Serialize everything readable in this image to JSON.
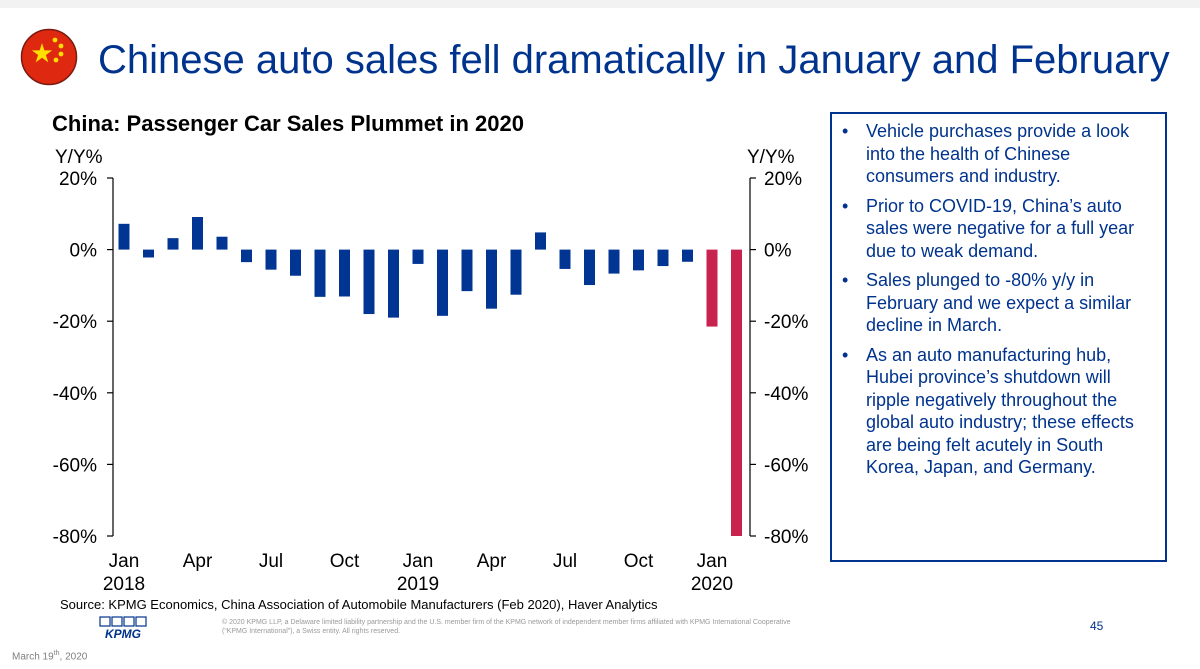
{
  "slide_title": "Chinese auto sales fell dramatically in January and February",
  "flag_icon": "china-flag-icon",
  "colors": {
    "primary": "#00338D",
    "highlight": "#C8224E",
    "bar": "#003594"
  },
  "chart_data": {
    "type": "bar",
    "title": "China: Passenger Car Sales Plummet in 2020",
    "ylabel_left": "Y/Y%",
    "ylabel_right": "Y/Y%",
    "ylim": [
      -80,
      20
    ],
    "yticks": [
      20,
      0,
      -20,
      -40,
      -60,
      -80
    ],
    "ytick_labels": [
      "20%",
      "0%",
      "-20%",
      "-40%",
      "-60%",
      "-80%"
    ],
    "categories": [
      "Jan 2018",
      "Feb 2018",
      "Mar 2018",
      "Apr 2018",
      "May 2018",
      "Jun 2018",
      "Jul 2018",
      "Aug 2018",
      "Sep 2018",
      "Oct 2018",
      "Nov 2018",
      "Dec 2018",
      "Jan 2019",
      "Feb 2019",
      "Mar 2019",
      "Apr 2019",
      "May 2019",
      "Jun 2019",
      "Jul 2019",
      "Aug 2019",
      "Sep 2019",
      "Oct 2019",
      "Nov 2019",
      "Dec 2019",
      "Jan 2020",
      "Feb 2020"
    ],
    "values": [
      7.2,
      -2.2,
      3.2,
      9.1,
      3.6,
      -3.5,
      -5.6,
      -7.3,
      -13.2,
      -13.1,
      -18.0,
      -19.0,
      -4.0,
      -18.5,
      -11.6,
      -16.5,
      -12.6,
      4.8,
      -5.4,
      -9.9,
      -6.7,
      -5.8,
      -4.6,
      -3.4,
      -21.5,
      -80.0
    ],
    "highlight_from_index": 24,
    "xtick_labels": [
      {
        "index": 0,
        "label": "Jan",
        "sub": "2018"
      },
      {
        "index": 3,
        "label": "Apr",
        "sub": ""
      },
      {
        "index": 6,
        "label": "Jul",
        "sub": ""
      },
      {
        "index": 9,
        "label": "Oct",
        "sub": ""
      },
      {
        "index": 12,
        "label": "Jan",
        "sub": "2019"
      },
      {
        "index": 15,
        "label": "Apr",
        "sub": ""
      },
      {
        "index": 18,
        "label": "Jul",
        "sub": ""
      },
      {
        "index": 21,
        "label": "Oct",
        "sub": ""
      },
      {
        "index": 24,
        "label": "Jan",
        "sub": "2020"
      }
    ]
  },
  "bullets": [
    "Vehicle purchases provide a look into the health of Chinese consumers and industry.",
    "Prior to COVID-19, China’s auto sales were negative for a full year due to weak demand.",
    "Sales plunged to -80% y/y in February and we expect a similar decline in March.",
    "As an auto manufacturing hub, Hubei province’s shutdown will ripple negatively throughout the global auto industry; these effects are being felt acutely in South Korea, Japan, and Germany."
  ],
  "bullet_char": "•",
  "source": "Source: KPMG Economics, China Association of Automobile Manufacturers (Feb 2020), Haver Analytics",
  "logo_text": "KPMG",
  "copyright": "© 2020 KPMG LLP, a Delaware limited liability partnership and the U.S. member firm of the KPMG network of independent member firms affiliated with KPMG International Cooperative (“KPMG International”), a Swiss entity. All rights reserved.",
  "page_number": "45",
  "date_main": "March 19",
  "date_sup": "th",
  "date_year": ", 2020"
}
